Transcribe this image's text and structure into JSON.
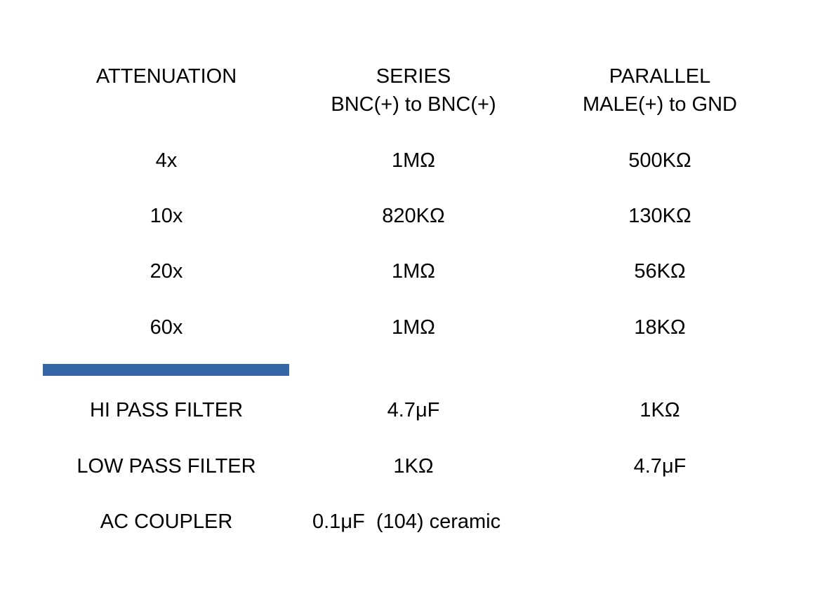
{
  "header": {
    "col1": "ATTENUATION",
    "col2_line1": "SERIES",
    "col2_line2": "BNC(+) to BNC(+)",
    "col3_line1": "PARALLEL",
    "col3_line2": "MALE(+) to GND"
  },
  "attenuation_rows": [
    {
      "label": "4x",
      "series": "1MΩ",
      "parallel": "500KΩ"
    },
    {
      "label": "10x",
      "series": "820KΩ",
      "parallel": "130KΩ"
    },
    {
      "label": "20x",
      "series": "1MΩ",
      "parallel": "56KΩ"
    },
    {
      "label": "60x",
      "series": "1MΩ",
      "parallel": "18KΩ"
    }
  ],
  "divider_color": "#3566a8",
  "filter_rows": [
    {
      "label": "HI PASS FILTER",
      "series": "4.7μF",
      "parallel": "1KΩ"
    },
    {
      "label": "LOW PASS FILTER",
      "series": "1KΩ",
      "parallel": "4.7μF"
    }
  ],
  "ac_coupler": {
    "label": "AC COUPLER",
    "value": "0.1μF  (104) ceramic"
  }
}
